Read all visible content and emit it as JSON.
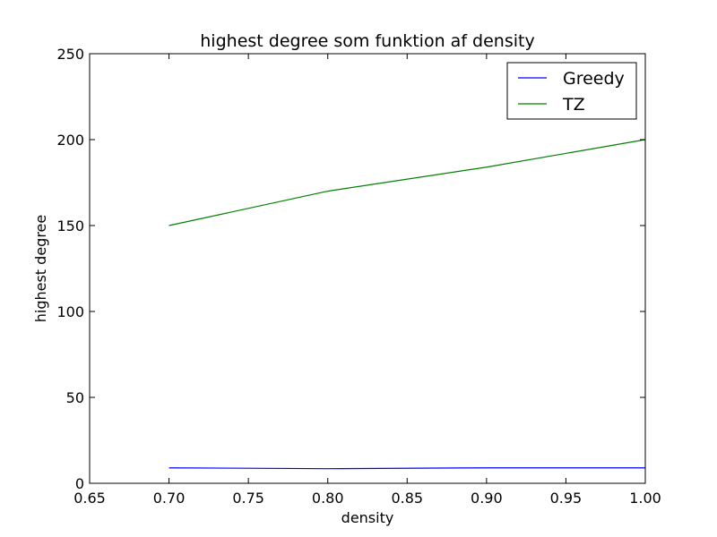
{
  "chart_data": {
    "type": "line",
    "title": "highest degree som funktion af density",
    "xlabel": "density",
    "ylabel": "highest degree",
    "xlim": [
      0.65,
      1.0
    ],
    "ylim": [
      0,
      250
    ],
    "xticks": [
      0.65,
      0.7,
      0.75,
      0.8,
      0.85,
      0.9,
      0.95,
      1.0
    ],
    "xtick_labels": [
      "0.65",
      "0.70",
      "0.75",
      "0.80",
      "0.85",
      "0.90",
      "0.95",
      "1.00"
    ],
    "yticks": [
      0,
      50,
      100,
      150,
      200,
      250
    ],
    "ytick_labels": [
      "0",
      "50",
      "100",
      "150",
      "200",
      "250"
    ],
    "grid": false,
    "legend_position": "top-right",
    "series": [
      {
        "name": "Greedy",
        "color": "#0000ff",
        "x": [
          0.7,
          0.8,
          0.9,
          1.0
        ],
        "y": [
          9,
          8.5,
          9,
          9
        ]
      },
      {
        "name": "TZ",
        "color": "#008000",
        "x": [
          0.7,
          0.8,
          0.9,
          1.0
        ],
        "y": [
          150,
          170,
          184,
          200
        ]
      }
    ]
  }
}
